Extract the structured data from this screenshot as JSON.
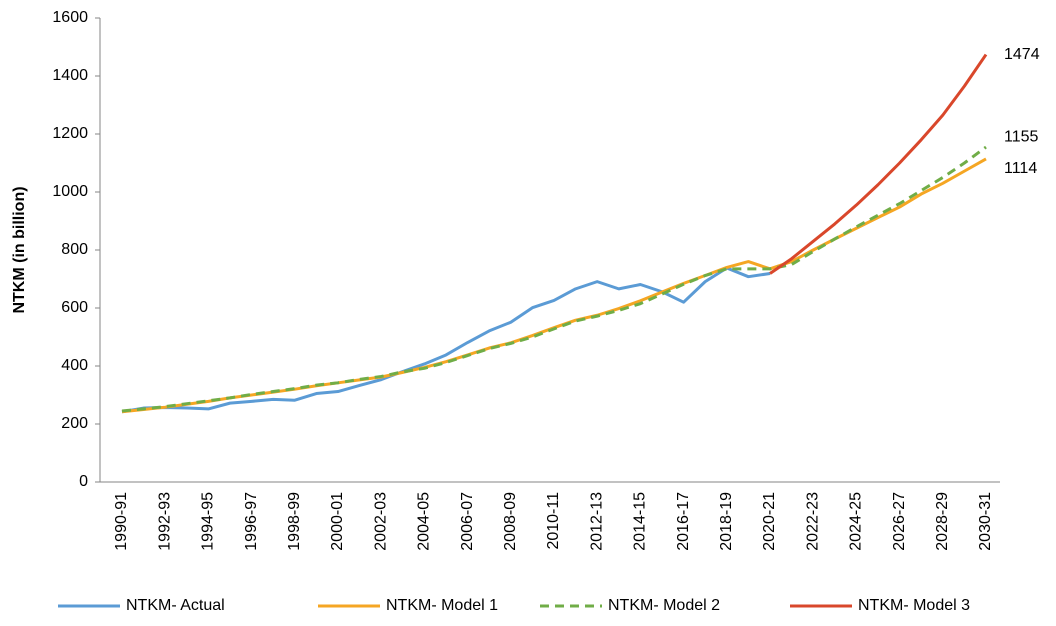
{
  "chart_data": {
    "type": "line",
    "y_label": "NTKM (in billion)",
    "categories": [
      "1990-91",
      null,
      "1992-93",
      null,
      "1994-95",
      null,
      "1996-97",
      null,
      "1998-99",
      null,
      "2000-01",
      null,
      "2002-03",
      null,
      "2004-05",
      null,
      "2006-07",
      null,
      "2008-09",
      null,
      "2010-11",
      null,
      "2012-13",
      null,
      "2014-15",
      null,
      "2016-17",
      null,
      "2018-19",
      null,
      "2020-21",
      null,
      "2022-23",
      null,
      "2024-25",
      null,
      "2026-27",
      null,
      "2028-29",
      null,
      "2030-31"
    ],
    "series": [
      {
        "name": "NTKM- Actual",
        "color": "#5b9bd5",
        "line_style": "solid",
        "values": [
          242,
          255,
          257,
          255,
          252,
          272,
          278,
          285,
          282,
          305,
          312,
          333,
          353,
          381,
          407,
          438,
          481,
          521,
          551,
          601,
          626,
          666,
          691,
          666,
          681,
          656,
          620,
          691,
          738,
          708,
          719,
          null,
          null,
          null,
          null,
          null,
          null,
          null,
          null,
          null,
          null
        ]
      },
      {
        "name": "NTKM- Model 1",
        "color": "#f5a623",
        "line_style": "solid",
        "values": [
          242,
          250,
          258,
          268,
          278,
          290,
          300,
          310,
          320,
          332,
          342,
          352,
          362,
          378,
          395,
          415,
          438,
          462,
          480,
          505,
          532,
          558,
          575,
          598,
          625,
          655,
          685,
          712,
          740,
          760,
          735,
          760,
          800,
          838,
          875,
          912,
          948,
          993,
          1030,
          1072,
          1114
        ]
      },
      {
        "name": "NTKM- Model 2",
        "color": "#70ad47",
        "line_style": "dashed",
        "values": [
          245,
          252,
          260,
          270,
          280,
          290,
          302,
          312,
          322,
          334,
          342,
          354,
          364,
          380,
          392,
          412,
          436,
          460,
          478,
          500,
          528,
          555,
          572,
          592,
          615,
          648,
          682,
          712,
          735,
          735,
          735,
          750,
          795,
          838,
          880,
          920,
          960,
          1005,
          1050,
          1100,
          1155
        ]
      },
      {
        "name": "NTKM- Model 3",
        "color": "#d9472b",
        "line_style": "solid",
        "values": [
          null,
          null,
          null,
          null,
          null,
          null,
          null,
          null,
          null,
          null,
          null,
          null,
          null,
          null,
          null,
          null,
          null,
          null,
          null,
          null,
          null,
          null,
          null,
          null,
          null,
          null,
          null,
          null,
          null,
          null,
          719,
          770,
          830,
          890,
          955,
          1025,
          1100,
          1180,
          1265,
          1365,
          1474
        ]
      }
    ],
    "ylim": [
      0,
      1600
    ],
    "yticks": [
      0,
      200,
      400,
      600,
      800,
      1000,
      1200,
      1400,
      1600
    ],
    "grid": false,
    "legend": "bottom"
  }
}
